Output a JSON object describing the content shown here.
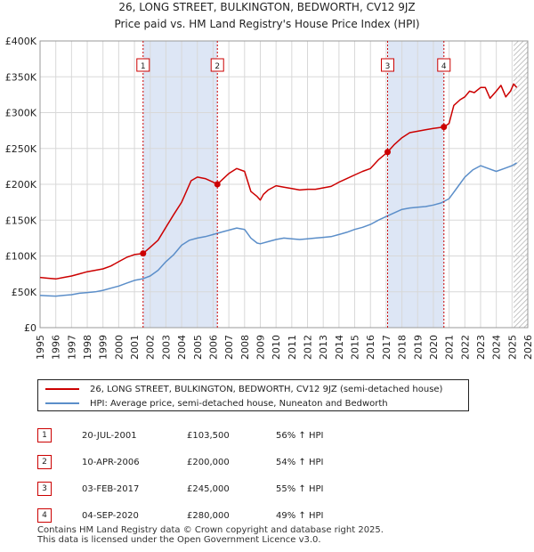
{
  "chart_data": {
    "type": "line",
    "title": "26, LONG STREET, BULKINGTON, BEDWORTH, CV12 9JZ",
    "subtitle": "Price paid vs. HM Land Registry's House Price Index (HPI)",
    "xlim": [
      1995,
      2026
    ],
    "ylim": [
      0,
      400000
    ],
    "x_ticks": [
      "1995",
      "1996",
      "1997",
      "1998",
      "1999",
      "2000",
      "2001",
      "2002",
      "2003",
      "2004",
      "2005",
      "2006",
      "2007",
      "2008",
      "2009",
      "2010",
      "2011",
      "2012",
      "2013",
      "2014",
      "2015",
      "2016",
      "2017",
      "2018",
      "2019",
      "2020",
      "2021",
      "2022",
      "2023",
      "2024",
      "2025",
      "2026"
    ],
    "y_ticks": [
      {
        "value": 0,
        "label": "£0"
      },
      {
        "value": 50000,
        "label": "£50K"
      },
      {
        "value": 100000,
        "label": "£100K"
      },
      {
        "value": 150000,
        "label": "£150K"
      },
      {
        "value": 200000,
        "label": "£200K"
      },
      {
        "value": 250000,
        "label": "£250K"
      },
      {
        "value": 300000,
        "label": "£300K"
      },
      {
        "value": 350000,
        "label": "£350K"
      },
      {
        "value": 400000,
        "label": "£400K"
      }
    ],
    "colors": {
      "price": "#cc0000",
      "hpi": "#5b8ec9",
      "shade": "#dde6f5",
      "future": "#b0b0b0"
    },
    "shaded_ranges": [
      [
        2001.55,
        2006.27
      ],
      [
        2017.09,
        2020.67
      ]
    ],
    "future_from": 2025.1,
    "series": [
      {
        "name": "26, LONG STREET, BULKINGTON, BEDWORTH, CV12 9JZ (semi-detached house)",
        "color": "#cc0000",
        "x": [
          1995,
          1995.5,
          1996,
          1996.5,
          1997,
          1997.5,
          1998,
          1998.5,
          1999,
          1999.5,
          2000,
          2000.5,
          2001,
          2001.55,
          2002,
          2002.5,
          2003,
          2003.5,
          2004,
          2004.3,
          2004.6,
          2005,
          2005.5,
          2006,
          2006.27,
          2006.6,
          2007,
          2007.5,
          2008,
          2008.4,
          2008.8,
          2009,
          2009.2,
          2009.5,
          2010,
          2010.5,
          2011,
          2011.5,
          2012,
          2012.5,
          2013,
          2013.5,
          2014,
          2014.5,
          2015,
          2015.5,
          2016,
          2016.5,
          2017.09,
          2017.5,
          2018,
          2018.5,
          2019,
          2019.5,
          2020,
          2020.67,
          2021,
          2021.3,
          2021.7,
          2022,
          2022.3,
          2022.6,
          2023,
          2023.3,
          2023.6,
          2024,
          2024.3,
          2024.6,
          2024.9,
          2025.1,
          2025.3
        ],
        "values": [
          70000,
          69000,
          68000,
          70000,
          72000,
          75000,
          78000,
          80000,
          82000,
          86000,
          92000,
          98000,
          102000,
          103500,
          112000,
          122000,
          140000,
          158000,
          175000,
          190000,
          205000,
          210000,
          208000,
          203000,
          200000,
          207000,
          215000,
          222000,
          218000,
          190000,
          183000,
          178000,
          186000,
          192000,
          198000,
          196000,
          194000,
          192000,
          193000,
          193000,
          195000,
          197000,
          203000,
          208000,
          213000,
          218000,
          222000,
          234000,
          245000,
          255000,
          265000,
          272000,
          274000,
          276000,
          278000,
          280000,
          285000,
          310000,
          318000,
          322000,
          330000,
          328000,
          335000,
          335000,
          320000,
          330000,
          338000,
          322000,
          330000,
          340000,
          335000
        ]
      },
      {
        "name": "HPI: Average price, semi-detached house, Nuneaton and Bedworth",
        "color": "#5b8ec9",
        "x": [
          1995,
          1995.5,
          1996,
          1996.5,
          1997,
          1997.5,
          1998,
          1998.5,
          1999,
          1999.5,
          2000,
          2000.5,
          2001,
          2001.5,
          2002,
          2002.5,
          2003,
          2003.5,
          2004,
          2004.5,
          2005,
          2005.5,
          2006,
          2006.5,
          2007,
          2007.5,
          2008,
          2008.4,
          2008.8,
          2009,
          2009.5,
          2010,
          2010.5,
          2011,
          2011.5,
          2012,
          2012.5,
          2013,
          2013.5,
          2014,
          2014.5,
          2015,
          2015.5,
          2016,
          2016.5,
          2017,
          2017.5,
          2018,
          2018.5,
          2019,
          2019.5,
          2020,
          2020.5,
          2021,
          2021.5,
          2022,
          2022.5,
          2023,
          2023.5,
          2024,
          2024.5,
          2025,
          2025.3
        ],
        "values": [
          45000,
          44500,
          44000,
          45000,
          46000,
          48000,
          49000,
          50000,
          52000,
          55000,
          58000,
          62000,
          66000,
          68000,
          72000,
          80000,
          92000,
          102000,
          115000,
          122000,
          125000,
          127000,
          130000,
          133000,
          136000,
          139000,
          137000,
          125000,
          118000,
          117000,
          120000,
          123000,
          125000,
          124000,
          123000,
          124000,
          125000,
          126000,
          127000,
          130000,
          133000,
          137000,
          140000,
          144000,
          150000,
          155000,
          160000,
          165000,
          167000,
          168000,
          169000,
          171000,
          174000,
          180000,
          195000,
          210000,
          220000,
          226000,
          222000,
          218000,
          222000,
          226000,
          230000
        ]
      }
    ],
    "markers": [
      {
        "label": "1",
        "x": 2001.55,
        "y": 103500
      },
      {
        "label": "2",
        "x": 2006.27,
        "y": 200000
      },
      {
        "label": "3",
        "x": 2017.09,
        "y": 245000
      },
      {
        "label": "4",
        "x": 2020.67,
        "y": 280000
      }
    ]
  },
  "legend": {
    "price_label": "26, LONG STREET, BULKINGTON, BEDWORTH, CV12 9JZ (semi-detached house)",
    "hpi_label": "HPI: Average price, semi-detached house, Nuneaton and Bedworth"
  },
  "sales": [
    {
      "num": "1",
      "date": "20-JUL-2001",
      "price": "£103,500",
      "pct": "56% ↑ HPI"
    },
    {
      "num": "2",
      "date": "10-APR-2006",
      "price": "£200,000",
      "pct": "54% ↑ HPI"
    },
    {
      "num": "3",
      "date": "03-FEB-2017",
      "price": "£245,000",
      "pct": "55% ↑ HPI"
    },
    {
      "num": "4",
      "date": "04-SEP-2020",
      "price": "£280,000",
      "pct": "49% ↑ HPI"
    }
  ],
  "footer": {
    "line1": "Contains HM Land Registry data © Crown copyright and database right 2025.",
    "line2": "This data is licensed under the Open Government Licence v3.0."
  }
}
